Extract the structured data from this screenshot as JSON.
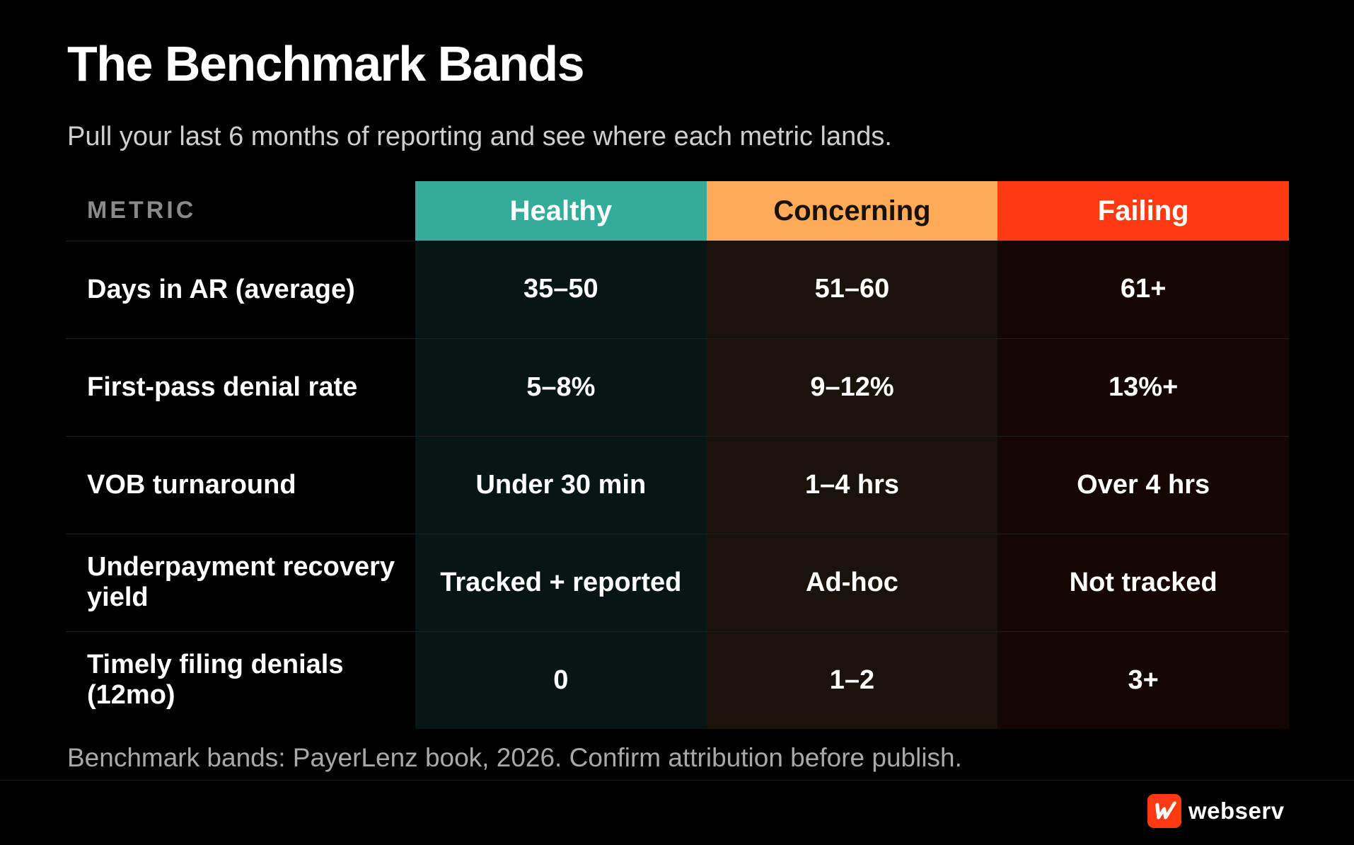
{
  "header": {
    "title": "The Benchmark Bands",
    "subtitle": "Pull your last 6 months of reporting and see where each metric lands."
  },
  "table": {
    "columns": {
      "metric": "METRIC",
      "healthy": "Healthy",
      "concerning": "Concerning",
      "failing": "Failing"
    },
    "rows": [
      {
        "metric": "Days in AR (average)",
        "healthy": "35–50",
        "concerning": "51–60",
        "failing": "61+"
      },
      {
        "metric": "First-pass denial rate",
        "healthy": "5–8%",
        "concerning": "9–12%",
        "failing": "13%+"
      },
      {
        "metric": "VOB turnaround",
        "healthy": "Under 30 min",
        "concerning": "1–4 hrs",
        "failing": "Over 4 hrs"
      },
      {
        "metric": "Underpayment recovery yield",
        "healthy": "Tracked + reported",
        "concerning": "Ad-hoc",
        "failing": "Not tracked"
      },
      {
        "metric": "Timely filing denials (12mo)",
        "healthy": "0",
        "concerning": "1–2",
        "failing": "3+"
      }
    ],
    "colors": {
      "healthy": "#34ac9a",
      "concerning": "#fdab58",
      "failing": "#ff3a12"
    }
  },
  "footnote": "Benchmark bands: PayerLenz book, 2026. Confirm attribution before publish.",
  "brand": {
    "name": "webserv",
    "icon": "webserv-logo-icon",
    "color": "#ff3a12"
  }
}
